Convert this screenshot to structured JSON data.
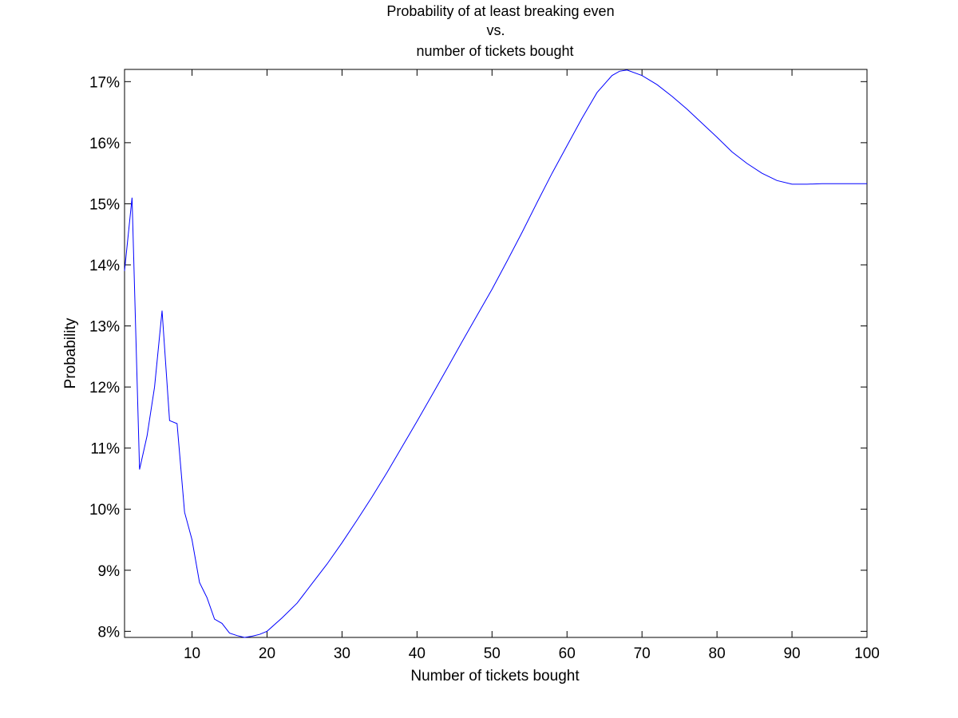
{
  "chart_data": {
    "type": "line",
    "title_lines": [
      "Probability of at least breaking even",
      "vs.",
      "number of tickets bought"
    ],
    "xlabel": "Number of tickets bought",
    "ylabel": "Probability",
    "xlim": [
      1,
      100
    ],
    "ylim": [
      7.9,
      17.2
    ],
    "x_ticks": [
      10,
      20,
      30,
      40,
      50,
      60,
      70,
      80,
      90,
      100
    ],
    "x_tick_labels": [
      "10",
      "20",
      "30",
      "40",
      "50",
      "60",
      "70",
      "80",
      "90",
      "100"
    ],
    "y_ticks": [
      8,
      9,
      10,
      11,
      12,
      13,
      14,
      15,
      16,
      17
    ],
    "y_tick_labels": [
      "8%",
      "9%",
      "10%",
      "11%",
      "12%",
      "13%",
      "14%",
      "15%",
      "16%",
      "17%"
    ],
    "grid": false,
    "line_color": "#0000ff",
    "series": [
      {
        "x": [
          1,
          2,
          3,
          4,
          5,
          6,
          7,
          8,
          9,
          10,
          11,
          12,
          13,
          14,
          15,
          16,
          17,
          18,
          19,
          20,
          22,
          24,
          26,
          28,
          30,
          32,
          34,
          36,
          38,
          40,
          42,
          44,
          46,
          48,
          50,
          52,
          54,
          56,
          58,
          60,
          62,
          64,
          66,
          67,
          68,
          70,
          72,
          74,
          76,
          78,
          80,
          82,
          84,
          86,
          88,
          90,
          92,
          94,
          96,
          97,
          98,
          100
        ],
        "y": [
          13.9,
          15.1,
          10.65,
          11.2,
          12.0,
          13.25,
          11.45,
          11.4,
          9.95,
          9.5,
          8.8,
          8.55,
          8.2,
          8.13,
          7.97,
          7.93,
          7.9,
          7.92,
          7.95,
          8.0,
          8.22,
          8.46,
          8.78,
          9.1,
          9.45,
          9.82,
          10.2,
          10.6,
          11.02,
          11.44,
          11.87,
          12.3,
          12.74,
          13.17,
          13.6,
          14.06,
          14.53,
          15.02,
          15.5,
          15.95,
          16.4,
          16.82,
          17.1,
          17.17,
          17.19,
          17.1,
          16.95,
          16.76,
          16.55,
          16.32,
          16.09,
          15.85,
          15.66,
          15.5,
          15.38,
          15.32,
          15.32,
          15.33,
          15.33,
          15.33,
          15.33,
          15.33
        ]
      }
    ]
  }
}
